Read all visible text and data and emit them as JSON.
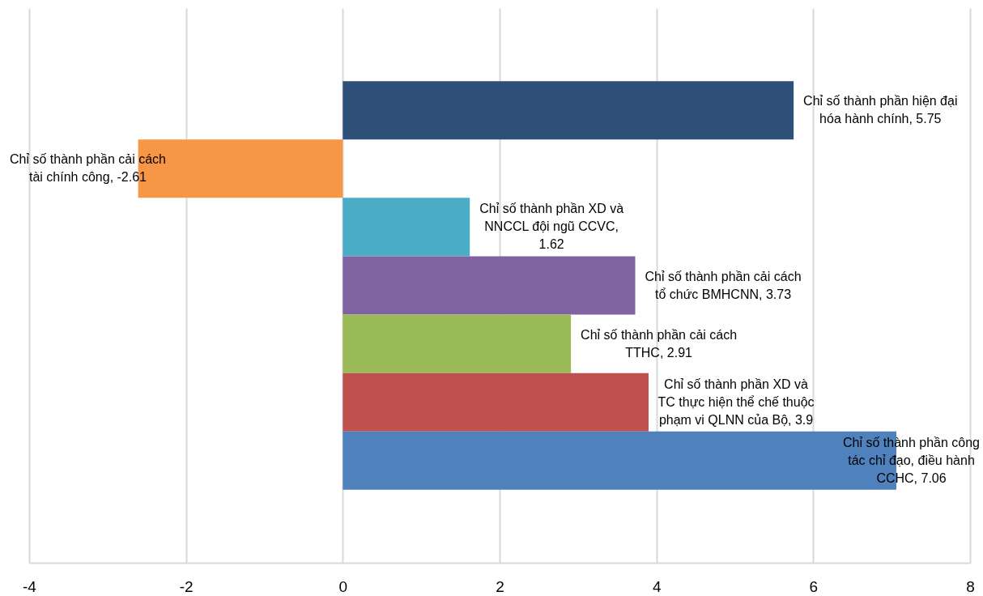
{
  "chart_data": {
    "type": "bar",
    "orientation": "horizontal",
    "categories": [
      null,
      null,
      null,
      null,
      null,
      null,
      null,
      null,
      null
    ],
    "values": [
      null,
      5.75,
      -2.61,
      1.62,
      3.73,
      2.91,
      3.9,
      7.06,
      null
    ],
    "colors": [
      null,
      "#2e5079",
      "#f79646",
      "#4bacc6",
      "#8064a2",
      "#9bbb59",
      "#c0504d",
      "#4f81bd",
      null
    ],
    "value_labels": [
      null,
      "Chỉ số thành phần hiện đại hóa hành chính, 5.75",
      "Chỉ số thành phần cải cách tài chính công, -2.61",
      "Chỉ số thành phần XD và NNCCL đội ngũ CCVC, 1.62",
      "Chỉ số thành phần cải cách tổ chức BMHCNN, 3.73",
      "Chỉ số thành phần cải cách TTHC, 2.91",
      "Chỉ số thành phần XD và TC thực hiện thể chế thuộc phạm vi QLNN của Bộ, 3.9",
      "Chỉ số thành phần công tác chỉ đạo, điều hành CCHC, 7.06",
      null
    ],
    "xlim": [
      -4,
      8
    ],
    "xticks": [
      -4,
      -2,
      0,
      2,
      4,
      6,
      8
    ],
    "grid": "x",
    "tick_labels": "x"
  }
}
